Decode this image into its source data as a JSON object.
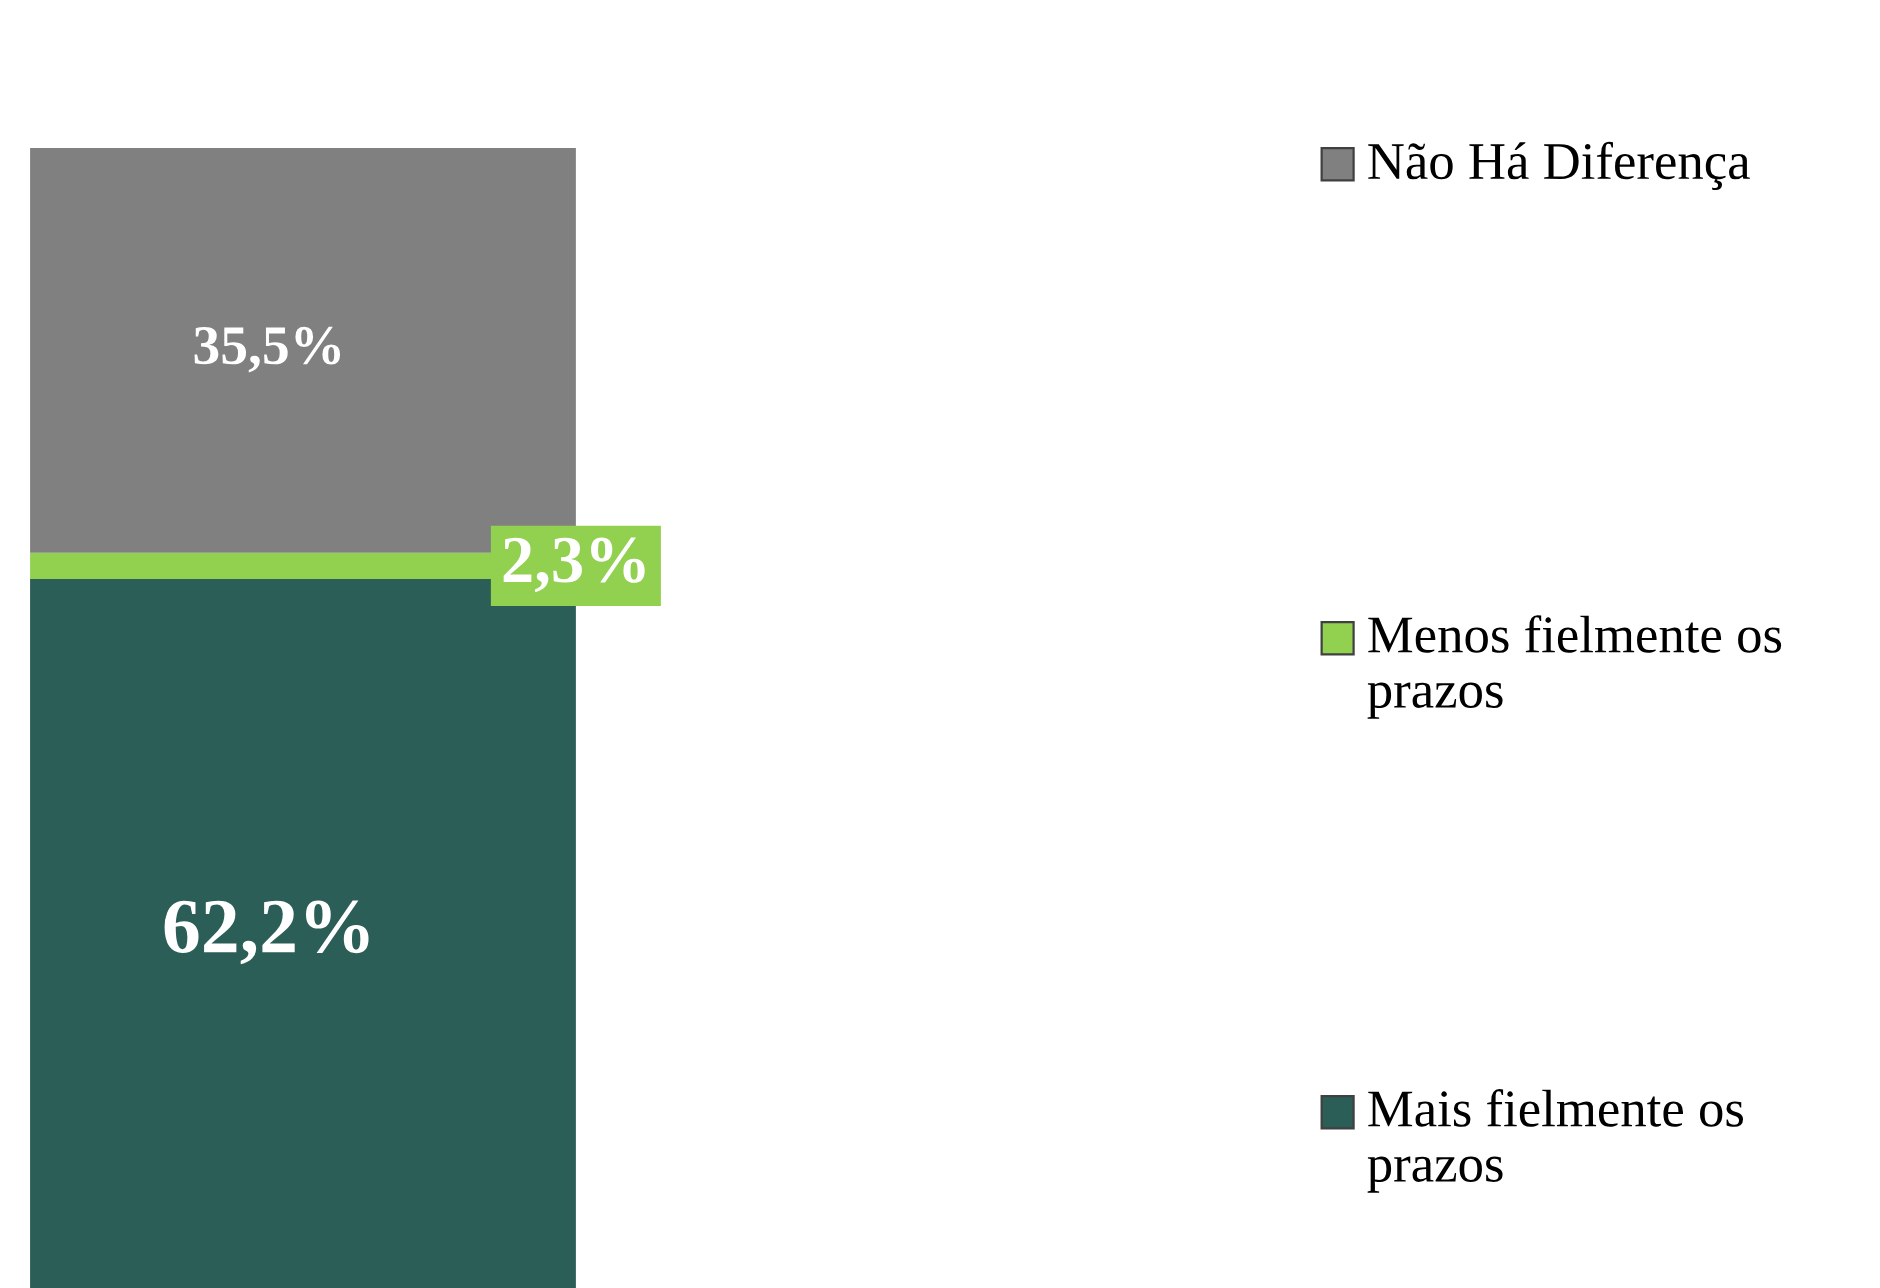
{
  "chart_data": {
    "type": "bar",
    "stacked": true,
    "categories": [
      null
    ],
    "series": [
      {
        "name": "Mais fielmente os prazos",
        "color": "#2a5e57",
        "values": [
          62.2
        ],
        "value_labels": [
          "62,2%"
        ]
      },
      {
        "name": "Menos fielmente os prazos",
        "color": "#92d050",
        "values": [
          2.3
        ],
        "value_labels": [
          "2,3%"
        ]
      },
      {
        "name": "Não Há Diferença",
        "color": "#808080",
        "values": [
          35.5
        ],
        "value_labels": [
          "35,5%"
        ]
      }
    ],
    "legend": "right"
  }
}
